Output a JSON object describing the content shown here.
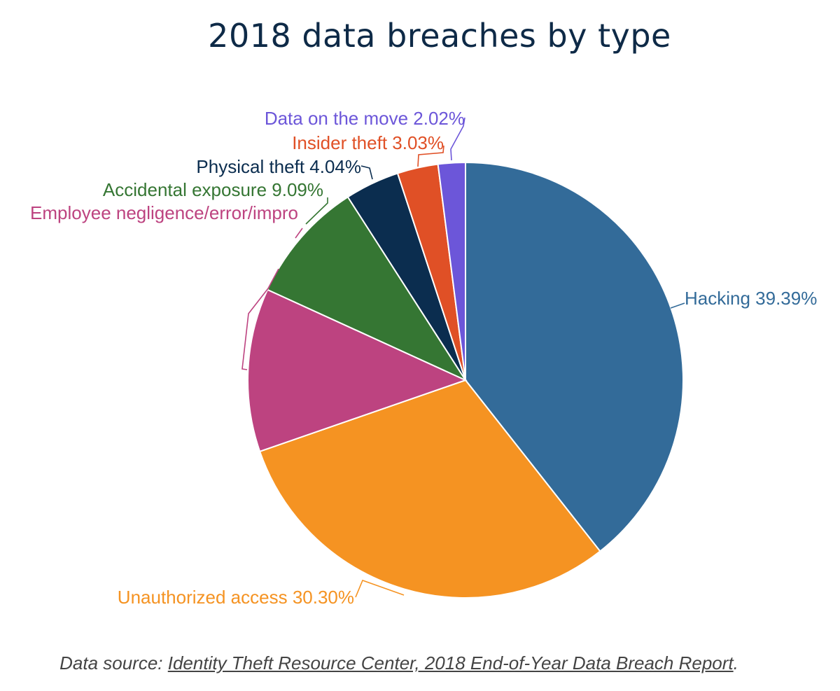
{
  "chart_data": {
    "type": "pie",
    "title": "2018 data breaches by type",
    "slices": [
      {
        "label": "Hacking 39.39%",
        "name": "Hacking",
        "value": 39.39,
        "color": "#336b99"
      },
      {
        "label": "Unauthorized access 30.30%",
        "name": "Unauthorized access",
        "value": 30.3,
        "color": "#f59322"
      },
      {
        "label": "Employee negligence/error/impro",
        "name": "Employee negligence/error/improper",
        "value": 12.13,
        "color": "#bd4380"
      },
      {
        "label": "Accidental exposure 9.09%",
        "name": "Accidental exposure",
        "value": 9.09,
        "color": "#357633"
      },
      {
        "label": "Physical theft 4.04%",
        "name": "Physical theft",
        "value": 4.04,
        "color": "#0b2d4f"
      },
      {
        "label": "Insider theft 3.03%",
        "name": "Insider theft",
        "value": 3.03,
        "color": "#e05026"
      },
      {
        "label": "Data on the move 2.02%",
        "name": "Data on the move",
        "value": 2.02,
        "color": "#6c56d9"
      }
    ]
  },
  "source": {
    "prefix": "Data source: ",
    "link_text": "Identity Theft Resource Center, 2018 End-of-Year Data Breach Report",
    "suffix": "."
  }
}
